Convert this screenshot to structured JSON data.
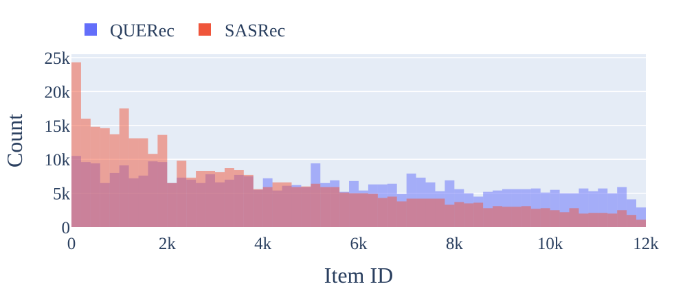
{
  "chart_data": {
    "type": "bar",
    "title": "",
    "xlabel": "Item ID",
    "ylabel": "Count",
    "xlim": [
      0,
      12000
    ],
    "ylim": [
      0,
      25500
    ],
    "bin_width": 200,
    "x_ticks": [
      {
        "value": 0,
        "label": "0"
      },
      {
        "value": 2000,
        "label": "2k"
      },
      {
        "value": 4000,
        "label": "4k"
      },
      {
        "value": 6000,
        "label": "6k"
      },
      {
        "value": 8000,
        "label": "8k"
      },
      {
        "value": 10000,
        "label": "10k"
      },
      {
        "value": 12000,
        "label": "12k"
      }
    ],
    "y_ticks": [
      {
        "value": 0,
        "label": "0"
      },
      {
        "value": 5000,
        "label": "5k"
      },
      {
        "value": 10000,
        "label": "10k"
      },
      {
        "value": 15000,
        "label": "15k"
      },
      {
        "value": 20000,
        "label": "20k"
      },
      {
        "value": 25000,
        "label": "25k"
      }
    ],
    "grid": true,
    "legend_position": "top-left",
    "background_color": "#e5ecf6",
    "bin_starts": [
      0,
      200,
      400,
      600,
      800,
      1000,
      1200,
      1400,
      1600,
      1800,
      2000,
      2200,
      2400,
      2600,
      2800,
      3000,
      3200,
      3400,
      3600,
      3800,
      4000,
      4200,
      4400,
      4600,
      4800,
      5000,
      5200,
      5400,
      5600,
      5800,
      6000,
      6200,
      6400,
      6600,
      6800,
      7000,
      7200,
      7400,
      7600,
      7800,
      8000,
      8200,
      8400,
      8600,
      8800,
      9000,
      9200,
      9400,
      9600,
      9800,
      10000,
      10200,
      10400,
      10600,
      10800,
      11000,
      11200,
      11400,
      11600,
      11800
    ],
    "series": [
      {
        "name": "QUERec",
        "color": "#636efa",
        "values": [
          10500,
          9600,
          9400,
          6500,
          8000,
          9100,
          7200,
          7600,
          9700,
          9600,
          6500,
          7300,
          7000,
          6500,
          7800,
          6600,
          7000,
          7700,
          7500,
          5500,
          7200,
          5400,
          6100,
          6200,
          5900,
          9400,
          6500,
          6900,
          5200,
          6800,
          5400,
          6300,
          6300,
          6400,
          4900,
          7900,
          7300,
          6600,
          5300,
          6900,
          5600,
          5000,
          4500,
          5200,
          5400,
          5600,
          5600,
          5600,
          5700,
          5100,
          5500,
          5000,
          5000,
          5700,
          5300,
          5700,
          5000,
          5900,
          4100,
          2900
        ],
        "opacity": 0.5
      },
      {
        "name": "SASRec",
        "color": "#ef553b",
        "values": [
          24300,
          16000,
          14800,
          14600,
          13700,
          17500,
          13100,
          13100,
          10800,
          13600,
          6500,
          9800,
          7300,
          8300,
          8300,
          8100,
          8700,
          8400,
          7700,
          5600,
          5900,
          6600,
          6600,
          5900,
          6000,
          6400,
          5900,
          5900,
          5100,
          5000,
          5000,
          4900,
          4300,
          4500,
          3800,
          4200,
          4200,
          4200,
          4200,
          3300,
          3700,
          3500,
          3600,
          2800,
          3100,
          3000,
          3000,
          3100,
          2700,
          2800,
          2500,
          2200,
          2800,
          2000,
          2100,
          2100,
          2000,
          2500,
          1800,
          1100
        ],
        "opacity": 0.5
      }
    ]
  }
}
